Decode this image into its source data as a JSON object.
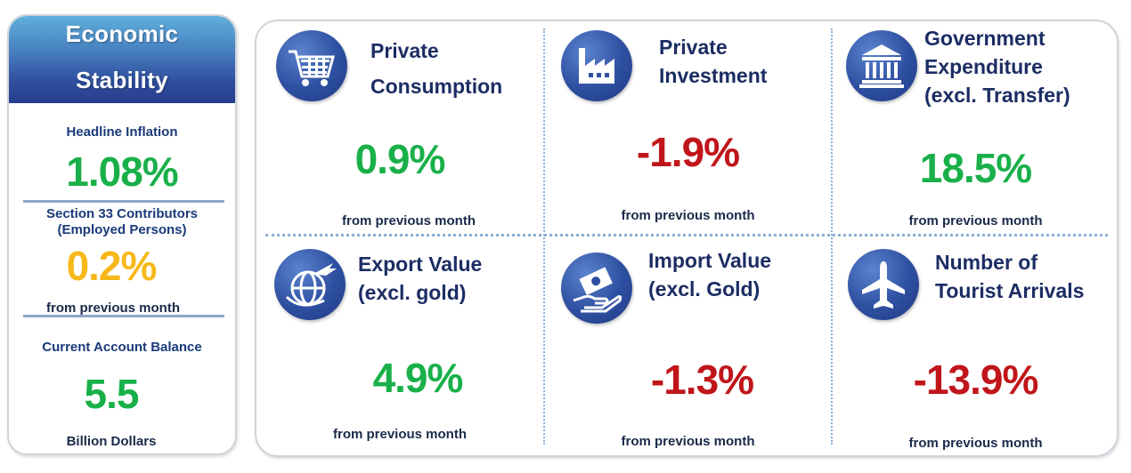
{
  "stability": {
    "title_line1": "Economic",
    "title_line2": "Stability",
    "inflation": {
      "label": "Headline Inflation",
      "value": "1.08%",
      "color": "#19b04a"
    },
    "section33": {
      "label1": "Section 33 Contributors",
      "label2": "(Employed Persons)",
      "value": "0.2%",
      "note": "from previous month",
      "color": "#f7b81b"
    },
    "current_account": {
      "label": "Current Account Balance",
      "value": "5.5",
      "unit": "Billion Dollars",
      "color": "#19b04a"
    }
  },
  "cards": [
    {
      "title1": "Private",
      "title2": "Consumption",
      "title3": "",
      "value": "0.9%",
      "note": "from previous month",
      "icon": "shopping-cart-icon",
      "color": "#19b04a"
    },
    {
      "title1": "Private",
      "title2": "Investment",
      "title3": "",
      "value": "-1.9%",
      "note": "from previous month",
      "icon": "factory-icon",
      "color": "#c0161b"
    },
    {
      "title1": "Government",
      "title2": "Expenditure",
      "title3": "(excl. Transfer)",
      "value": "18.5%",
      "note": "from previous month",
      "icon": "government-building-icon",
      "color": "#19b04a"
    },
    {
      "title1": "Export Value",
      "title2": "(excl. gold)",
      "title3": "",
      "value": "4.9%",
      "note": "from previous month",
      "icon": "globe-airplane-icon",
      "color": "#19b04a"
    },
    {
      "title1": "Import Value",
      "title2": "(excl. Gold)",
      "title3": "",
      "value": "-1.3%",
      "note": "from previous month",
      "icon": "hand-money-icon",
      "color": "#c0161b"
    },
    {
      "title1": "Number of",
      "title2": "Tourist Arrivals",
      "title3": "",
      "value": "-13.9%",
      "note": "from previous month",
      "icon": "airplane-icon",
      "color": "#c0161b"
    }
  ]
}
